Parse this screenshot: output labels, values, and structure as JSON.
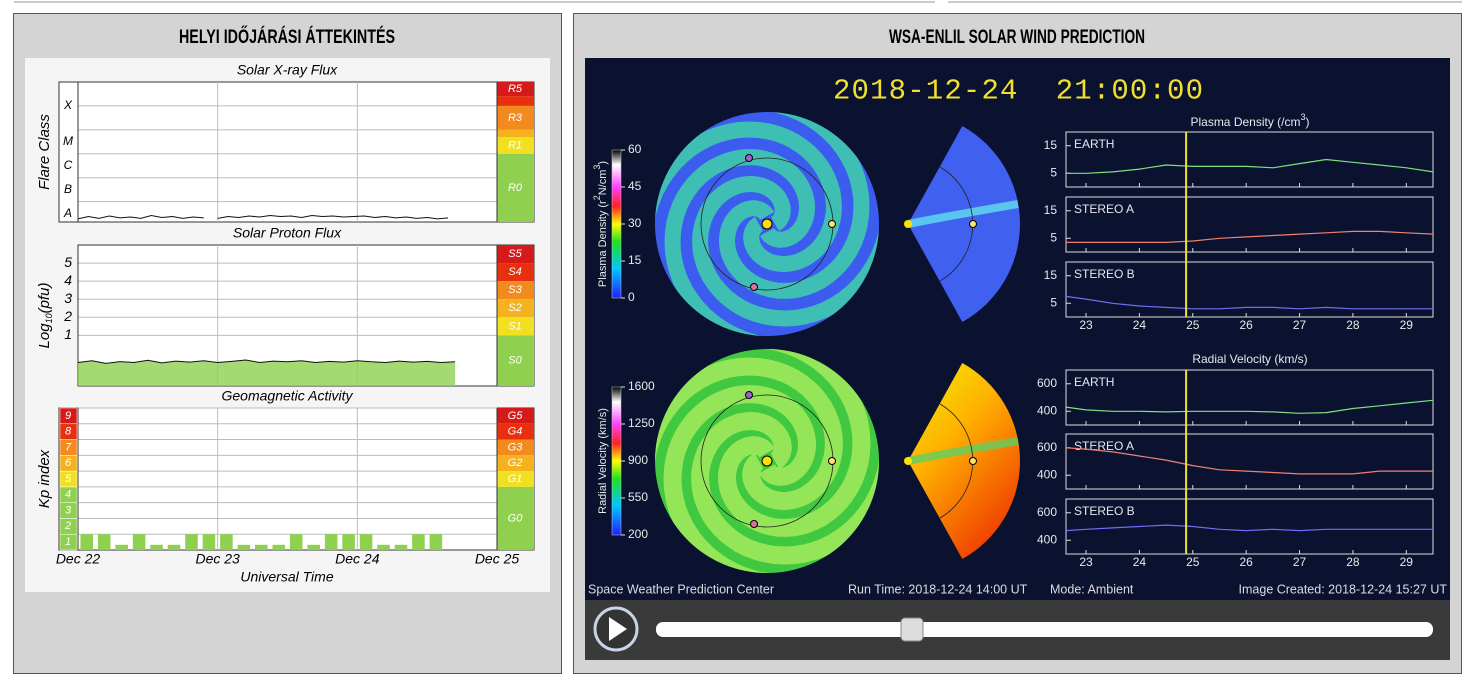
{
  "left": {
    "title": "HELYI IDŐJÁRÁSI ÁTTEKINTÉS",
    "xlim": [
      22,
      25
    ],
    "xticks": [
      {
        "value": 22,
        "label": "Dec 22"
      },
      {
        "value": 23,
        "label": "Dec 23"
      },
      {
        "value": 24,
        "label": "Dec 24"
      },
      {
        "value": 25,
        "label": "Dec 25"
      }
    ],
    "x_title": "Universal Time",
    "xray": {
      "type": "line",
      "title": "Solar X-ray Flux",
      "y_label": "Flare Class",
      "ylim": [
        -7.85,
        -2
      ],
      "yticks": [
        -7,
        -6,
        -5,
        -4,
        -3
      ],
      "class_ticks": [
        {
          "value": -7.5,
          "label": "A"
        },
        {
          "value": -6.5,
          "label": "B"
        },
        {
          "value": -5.5,
          "label": "C"
        },
        {
          "value": -4.5,
          "label": "M"
        },
        {
          "value": -3,
          "label": "X"
        }
      ],
      "scale_bands": [
        {
          "label": "R5",
          "from": -2.6,
          "to": -2,
          "color": "#d61a1a"
        },
        {
          "label": null,
          "from": -3,
          "to": -2.6,
          "color": "#e8300f"
        },
        {
          "label": "R3",
          "from": -4,
          "to": -3,
          "color": "#f28a1e"
        },
        {
          "label": null,
          "from": -4.3,
          "to": -4,
          "color": "#f5b21f"
        },
        {
          "label": "R1",
          "from": -5,
          "to": -4.3,
          "color": "#f0e020"
        },
        {
          "label": "R0",
          "from": -7.85,
          "to": -5,
          "color": "#8fd14f"
        }
      ],
      "color": "#111111",
      "x": [
        22.0,
        22.075,
        22.15,
        22.225,
        22.3,
        22.375,
        22.45,
        22.525,
        22.6,
        22.675,
        22.75,
        22.825,
        22.9,
        22.95,
        23.0,
        23.075,
        23.15,
        23.225,
        23.3,
        23.375,
        23.45,
        23.525,
        23.6,
        23.675,
        23.75,
        23.825,
        23.9,
        23.975,
        24.05,
        24.125,
        24.2,
        24.275,
        24.35,
        24.425,
        24.5,
        24.575,
        24.65
      ],
      "values": [
        -7.72,
        -7.62,
        -7.7,
        -7.6,
        -7.68,
        -7.64,
        -7.7,
        -7.58,
        -7.66,
        -7.62,
        -7.7,
        -7.64,
        -7.68,
        null,
        -7.7,
        -7.62,
        -7.66,
        -7.6,
        -7.64,
        -7.58,
        -7.62,
        -7.6,
        -7.66,
        -7.58,
        -7.62,
        -7.6,
        -7.64,
        -7.62,
        -7.6,
        -7.66,
        -7.62,
        -7.68,
        -7.64,
        -7.7,
        -7.66,
        -7.72,
        -7.68
      ]
    },
    "proton": {
      "type": "area",
      "title": "Solar Proton Flux",
      "y_label": [
        "Log",
        "10",
        "(pfu)"
      ],
      "ylim": [
        -1.8,
        6
      ],
      "yticks": [
        1,
        2,
        3,
        4,
        5
      ],
      "scale_bands": [
        {
          "label": "S5",
          "from": 5,
          "to": 6,
          "color": "#d61a1a"
        },
        {
          "label": "S4",
          "from": 4,
          "to": 5,
          "color": "#e8300f"
        },
        {
          "label": "S3",
          "from": 3,
          "to": 4,
          "color": "#f28a1e"
        },
        {
          "label": "S2",
          "from": 2,
          "to": 3,
          "color": "#f5b21f"
        },
        {
          "label": "S1",
          "from": 1,
          "to": 2,
          "color": "#f0e020"
        },
        {
          "label": "S0",
          "from": -1.8,
          "to": 1,
          "color": "#8fd14f"
        }
      ],
      "color": "#8fd14f",
      "x": [
        22.0,
        22.1,
        22.2,
        22.3,
        22.4,
        22.5,
        22.6,
        22.7,
        22.8,
        22.9,
        23.0,
        23.1,
        23.2,
        23.3,
        23.4,
        23.5,
        23.6,
        23.7,
        23.8,
        23.9,
        24.0,
        24.1,
        24.2,
        24.3,
        24.4,
        24.5,
        24.6,
        24.7
      ],
      "values": [
        -0.5,
        -0.4,
        -0.55,
        -0.45,
        -0.5,
        -0.38,
        -0.52,
        -0.42,
        -0.48,
        -0.4,
        -0.5,
        -0.44,
        -0.36,
        -0.5,
        -0.42,
        -0.46,
        -0.4,
        -0.5,
        -0.44,
        -0.48,
        -0.4,
        -0.46,
        -0.5,
        -0.42,
        -0.48,
        -0.44,
        -0.5,
        -0.46
      ]
    },
    "geomag": {
      "type": "bar",
      "title": "Geomagnetic Activity",
      "y_label": "Kp index",
      "ylim": [
        0,
        9
      ],
      "yticks": [
        1,
        2,
        3,
        4,
        5,
        6,
        7,
        8,
        9
      ],
      "scale_bands": [
        {
          "label": "G5",
          "from": 8,
          "to": 9,
          "color": "#d61a1a"
        },
        {
          "label": "G4",
          "from": 7,
          "to": 8,
          "color": "#e8300f"
        },
        {
          "label": "G3",
          "from": 6,
          "to": 7,
          "color": "#f28a1e"
        },
        {
          "label": "G2",
          "from": 5,
          "to": 6,
          "color": "#f5b21f"
        },
        {
          "label": "G1",
          "from": 4,
          "to": 5,
          "color": "#f0e020"
        },
        {
          "label": "G0",
          "from": 0,
          "to": 4,
          "color": "#8fd14f"
        }
      ],
      "color": "#8fd14f",
      "x": [
        22.0625,
        22.1875,
        22.3125,
        22.4375,
        22.5625,
        22.6875,
        22.8125,
        22.9375,
        23.0625,
        23.1875,
        23.3125,
        23.4375,
        23.5625,
        23.6875,
        23.8125,
        23.9375,
        24.0625,
        24.1875,
        24.3125,
        24.4375,
        24.5625
      ],
      "values": [
        1,
        1,
        0.33,
        1,
        0.33,
        0.33,
        1,
        1,
        1,
        0.33,
        0.33,
        0.33,
        1,
        0.33,
        1,
        1,
        1,
        0.33,
        0.33,
        1,
        1
      ]
    }
  },
  "right": {
    "title": "WSA-ENLIL SOLAR WIND PREDICTION",
    "timestamp": "2018-12-24  21:00:00",
    "x": [
      22.625,
      23,
      23.5,
      24,
      24.5,
      25,
      25.5,
      26,
      26.5,
      27,
      27.5,
      28,
      28.5,
      29,
      29.5
    ],
    "xlim": [
      22.625,
      29.5
    ],
    "xticks": [
      23,
      24,
      25,
      26,
      27,
      28,
      29
    ],
    "current_time": 24.875,
    "density": {
      "type": "line",
      "title": [
        "Plasma Density (/cm",
        "3",
        ")"
      ],
      "colorbar_label": [
        "Plasma Density (r",
        "2",
        "N/cm",
        "3",
        ")"
      ],
      "colorbar_ticks": [
        0,
        15,
        30,
        45,
        60
      ],
      "ylim": [
        0,
        20
      ],
      "yticks": [
        5,
        15
      ],
      "panels": [
        {
          "name": "EARTH",
          "color": "#7ee07e",
          "values": [
            5,
            5,
            5.5,
            6.5,
            8,
            7.5,
            7.5,
            7.5,
            7,
            8.5,
            10,
            9,
            8,
            7,
            5.5
          ]
        },
        {
          "name": "STEREO A",
          "color": "#f08070",
          "values": [
            3.5,
            3.5,
            3.5,
            3.5,
            3.5,
            4,
            5,
            5.5,
            6,
            6.5,
            7,
            7.5,
            7.5,
            7,
            6.5
          ]
        },
        {
          "name": "STEREO B",
          "color": "#6e6ef5",
          "values": [
            7.5,
            6.5,
            5,
            4,
            3.5,
            3,
            3,
            3.5,
            3.5,
            3,
            3.5,
            3,
            3,
            3,
            3
          ]
        }
      ]
    },
    "velocity": {
      "type": "line",
      "title": "Radial Velocity (km/s)",
      "colorbar_label": "Radial Velocity (km/s)",
      "colorbar_ticks": [
        200,
        550,
        900,
        1250,
        1600
      ],
      "ylim": [
        300,
        700
      ],
      "yticks": [
        400,
        600
      ],
      "panels": [
        {
          "name": "EARTH",
          "color": "#7ee07e",
          "values": [
            430,
            410,
            400,
            400,
            395,
            400,
            400,
            400,
            395,
            385,
            390,
            420,
            440,
            460,
            480
          ]
        },
        {
          "name": "STEREO A",
          "color": "#f08070",
          "values": [
            600,
            590,
            570,
            540,
            510,
            470,
            440,
            430,
            420,
            410,
            410,
            410,
            430,
            430,
            430
          ]
        },
        {
          "name": "STEREO B",
          "color": "#6e6ef5",
          "values": [
            470,
            480,
            490,
            500,
            510,
            500,
            480,
            470,
            480,
            470,
            480,
            480,
            480,
            480,
            480
          ]
        }
      ]
    },
    "footer": {
      "credit": "Space Weather Prediction Center",
      "run_time": "Run Time: 2018-12-24 14:00 UT",
      "mode": "Mode: Ambient",
      "created": "Image Created: 2018-12-24 15:27 UT"
    }
  }
}
